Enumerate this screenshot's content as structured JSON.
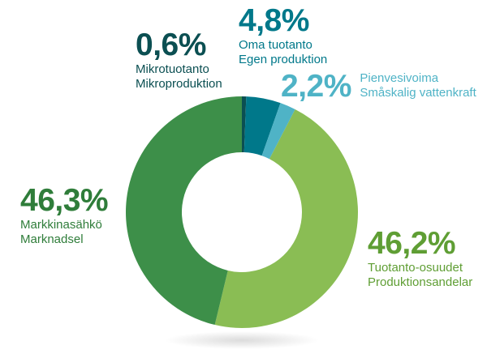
{
  "chart_data": {
    "type": "donut",
    "title": "",
    "slices": [
      {
        "key": "mikro",
        "value": 0.6,
        "pct_label": "0,6%",
        "fi": "Mikrotuotanto",
        "sv": "Mikroproduktion",
        "color": "#0b4f52",
        "label_color": "#0b4f52"
      },
      {
        "key": "oma",
        "value": 4.8,
        "pct_label": "4,8%",
        "fi": "Oma tuotanto",
        "sv": "Egen produktion",
        "color": "#00788a",
        "label_color": "#00788a"
      },
      {
        "key": "pien",
        "value": 2.2,
        "pct_label": "2,2%",
        "fi": "Pienvesivoima",
        "sv": "Småskalig vattenkraft",
        "color": "#4fb3c6",
        "label_color": "#4fb3c6"
      },
      {
        "key": "osuudet",
        "value": 46.2,
        "pct_label": "46,2%",
        "fi": "Tuotanto-osuudet",
        "sv": "Produktionsandelar",
        "color": "#8abd54",
        "label_color": "#5f9e34"
      },
      {
        "key": "markkina",
        "value": 46.3,
        "pct_label": "46,3%",
        "fi": "Markkinasähkö",
        "sv": "Marknadsel",
        "color": "#3d8f49",
        "label_color": "#2f7d3a"
      }
    ]
  }
}
